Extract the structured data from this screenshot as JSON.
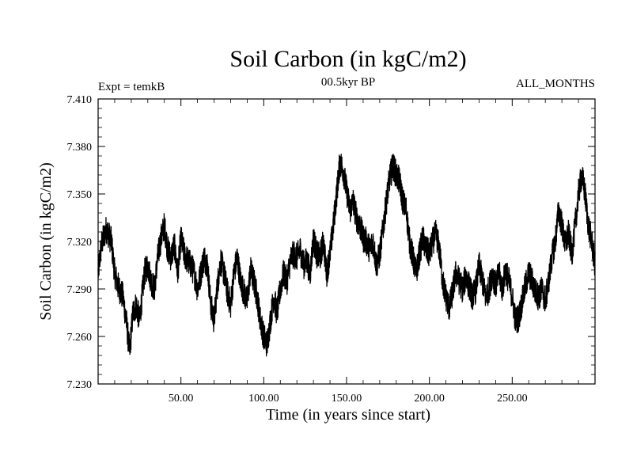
{
  "chart_data": {
    "type": "line",
    "title": "Soil Carbon (in kgC/m2)",
    "subtitle_left": "Expt = temkB",
    "subtitle_center": "00.5kyr BP",
    "subtitle_right": "ALL_MONTHS",
    "xlabel": "Time (in years since start)",
    "ylabel": "Soil Carbon (in kgC/m2)",
    "xlim": [
      0,
      300
    ],
    "ylim": [
      7.23,
      7.41
    ],
    "x_ticks": [
      50,
      100,
      150,
      200,
      250
    ],
    "x_tick_labels": [
      "50.00",
      "100.00",
      "150.00",
      "200.00",
      "250.00"
    ],
    "y_ticks": [
      7.23,
      7.26,
      7.29,
      7.32,
      7.35,
      7.38,
      7.41
    ],
    "y_tick_labels": [
      "7.230",
      "7.260",
      "7.290",
      "7.320",
      "7.350",
      "7.380",
      "7.410"
    ],
    "series": [
      {
        "name": "Soil Carbon",
        "color": "#000000",
        "x": [
          0,
          2,
          5,
          8,
          10,
          12,
          15,
          17,
          19,
          21,
          23,
          25,
          28,
          30,
          32,
          34,
          36,
          38,
          40,
          42,
          44,
          46,
          48,
          50,
          52,
          54,
          56,
          58,
          60,
          62,
          64,
          66,
          68,
          70,
          72,
          74,
          76,
          78,
          80,
          82,
          84,
          86,
          88,
          90,
          92,
          94,
          96,
          98,
          100,
          102,
          104,
          106,
          108,
          110,
          112,
          114,
          116,
          118,
          120,
          122,
          124,
          126,
          128,
          130,
          132,
          134,
          136,
          138,
          140,
          142,
          144,
          146,
          148,
          150,
          152,
          154,
          156,
          158,
          160,
          162,
          164,
          166,
          168,
          170,
          172,
          174,
          176,
          178,
          180,
          182,
          184,
          186,
          188,
          190,
          192,
          194,
          196,
          198,
          200,
          202,
          204,
          206,
          208,
          210,
          212,
          214,
          216,
          218,
          220,
          222,
          224,
          226,
          228,
          230,
          232,
          234,
          236,
          238,
          240,
          242,
          244,
          246,
          248,
          250,
          252,
          254,
          256,
          258,
          260,
          262,
          264,
          266,
          268,
          270,
          272,
          274,
          276,
          278,
          280,
          282,
          284,
          286,
          288,
          290,
          292,
          294,
          296,
          298,
          300
        ],
        "values": [
          7.3,
          7.318,
          7.328,
          7.32,
          7.3,
          7.292,
          7.285,
          7.27,
          7.25,
          7.275,
          7.28,
          7.27,
          7.3,
          7.305,
          7.295,
          7.29,
          7.31,
          7.322,
          7.33,
          7.315,
          7.31,
          7.318,
          7.3,
          7.322,
          7.312,
          7.308,
          7.305,
          7.3,
          7.29,
          7.3,
          7.31,
          7.305,
          7.28,
          7.27,
          7.292,
          7.308,
          7.3,
          7.288,
          7.28,
          7.3,
          7.31,
          7.295,
          7.288,
          7.282,
          7.302,
          7.295,
          7.285,
          7.27,
          7.26,
          7.255,
          7.27,
          7.285,
          7.275,
          7.29,
          7.3,
          7.295,
          7.308,
          7.312,
          7.31,
          7.315,
          7.305,
          7.308,
          7.3,
          7.322,
          7.312,
          7.31,
          7.32,
          7.3,
          7.312,
          7.33,
          7.35,
          7.37,
          7.365,
          7.352,
          7.34,
          7.345,
          7.335,
          7.33,
          7.322,
          7.32,
          7.315,
          7.32,
          7.305,
          7.312,
          7.328,
          7.345,
          7.36,
          7.368,
          7.362,
          7.358,
          7.345,
          7.34,
          7.32,
          7.31,
          7.3,
          7.312,
          7.322,
          7.315,
          7.312,
          7.32,
          7.325,
          7.315,
          7.295,
          7.285,
          7.278,
          7.288,
          7.3,
          7.295,
          7.29,
          7.298,
          7.292,
          7.285,
          7.29,
          7.305,
          7.295,
          7.285,
          7.29,
          7.3,
          7.292,
          7.3,
          7.29,
          7.302,
          7.295,
          7.285,
          7.27,
          7.272,
          7.282,
          7.292,
          7.3,
          7.295,
          7.288,
          7.285,
          7.29,
          7.282,
          7.295,
          7.31,
          7.32,
          7.34,
          7.33,
          7.318,
          7.325,
          7.312,
          7.33,
          7.35,
          7.362,
          7.35,
          7.33,
          7.32,
          7.305
        ],
        "noise_amplitude": 0.009
      }
    ]
  }
}
